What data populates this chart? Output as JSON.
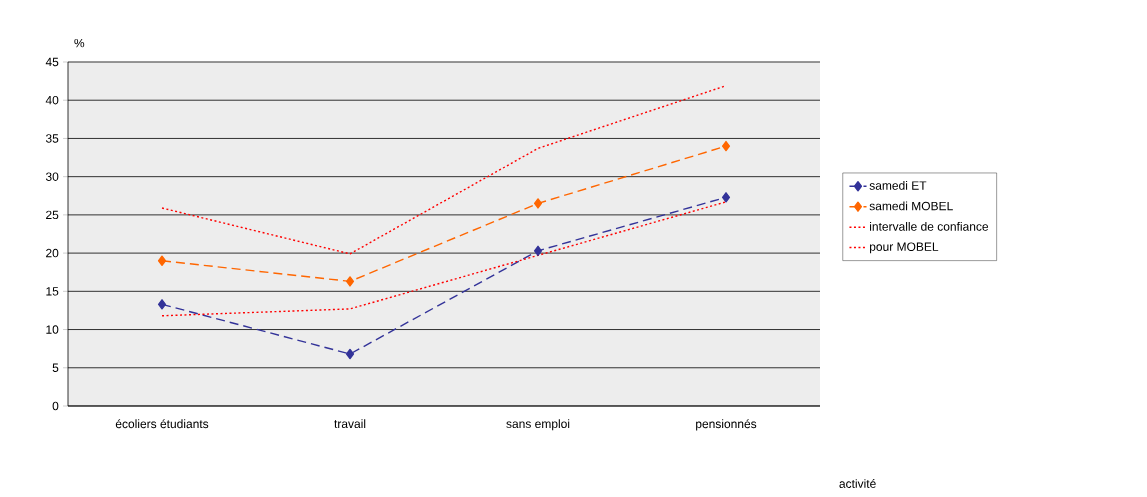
{
  "chart_data": {
    "type": "line",
    "xlabel": "activité",
    "ylabel": "%",
    "categories": [
      "écoliers étudiants",
      "travail",
      "sans emploi",
      "pensionnés"
    ],
    "series": [
      {
        "name": "samedi ET",
        "color": "#333399",
        "values": [
          13.3,
          6.8,
          20.3,
          27.3
        ],
        "line_style": "dashed",
        "marker": "diamond"
      },
      {
        "name": "samedi MOBEL",
        "color": "#ff6600",
        "values": [
          19.0,
          16.3,
          26.5,
          34.0
        ],
        "line_style": "dashed",
        "marker": "diamond"
      },
      {
        "name": "intervalle de confiance",
        "color": "#ff0000",
        "values": [
          25.9,
          19.9,
          33.7,
          41.9
        ],
        "line_style": "dotted"
      },
      {
        "name": "pour MOBEL",
        "color": "#ff0000",
        "values": [
          11.8,
          12.7,
          19.7,
          26.7
        ],
        "line_style": "dotted"
      }
    ],
    "ylim": [
      0,
      45
    ],
    "yticks": [
      0,
      5,
      10,
      15,
      20,
      25,
      30,
      35,
      40,
      45
    ],
    "grid": "y",
    "legend": "right"
  }
}
